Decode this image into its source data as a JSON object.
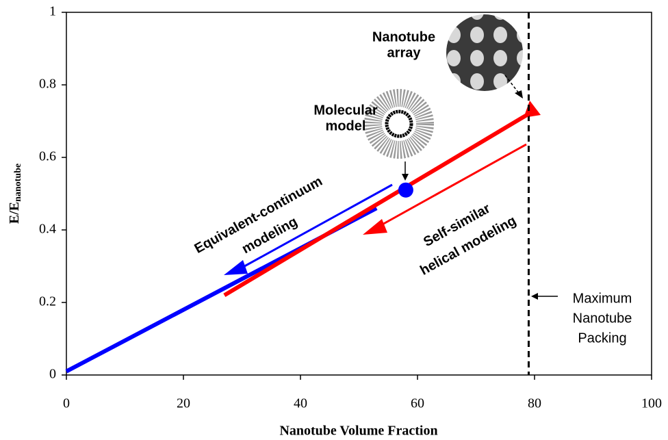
{
  "chart_data": {
    "type": "line",
    "x_label": "Nanotube Volume Fraction",
    "y_label": {
      "main": "E/E",
      "sub": "nanotube"
    },
    "xlim": [
      0,
      100
    ],
    "xticks": [
      0,
      20,
      40,
      60,
      80,
      100
    ],
    "ylim": [
      0,
      1
    ],
    "yticks": [
      0,
      0.2,
      0.4,
      0.6,
      0.8,
      1
    ],
    "series": [
      {
        "color": "#0000ff",
        "x": [
          0,
          53
        ],
        "values": [
          0.01,
          0.46
        ]
      },
      {
        "color": "#ff0000",
        "x": [
          27,
          79
        ],
        "values": [
          0.22,
          0.72
        ]
      }
    ],
    "point": {
      "x": 58,
      "value": 0.51,
      "color": "#0000ff"
    },
    "max_packing_x": 79,
    "annotations": {
      "continuum": [
        "Equivalent-continuum",
        "modeling"
      ],
      "helical": [
        "Self-similar",
        "helical modeling"
      ],
      "molecular": [
        "Molecular",
        "model"
      ],
      "array": [
        "Nanotube",
        "array"
      ],
      "packing": [
        "Maximum",
        "Nanotube",
        "Packing"
      ]
    }
  }
}
